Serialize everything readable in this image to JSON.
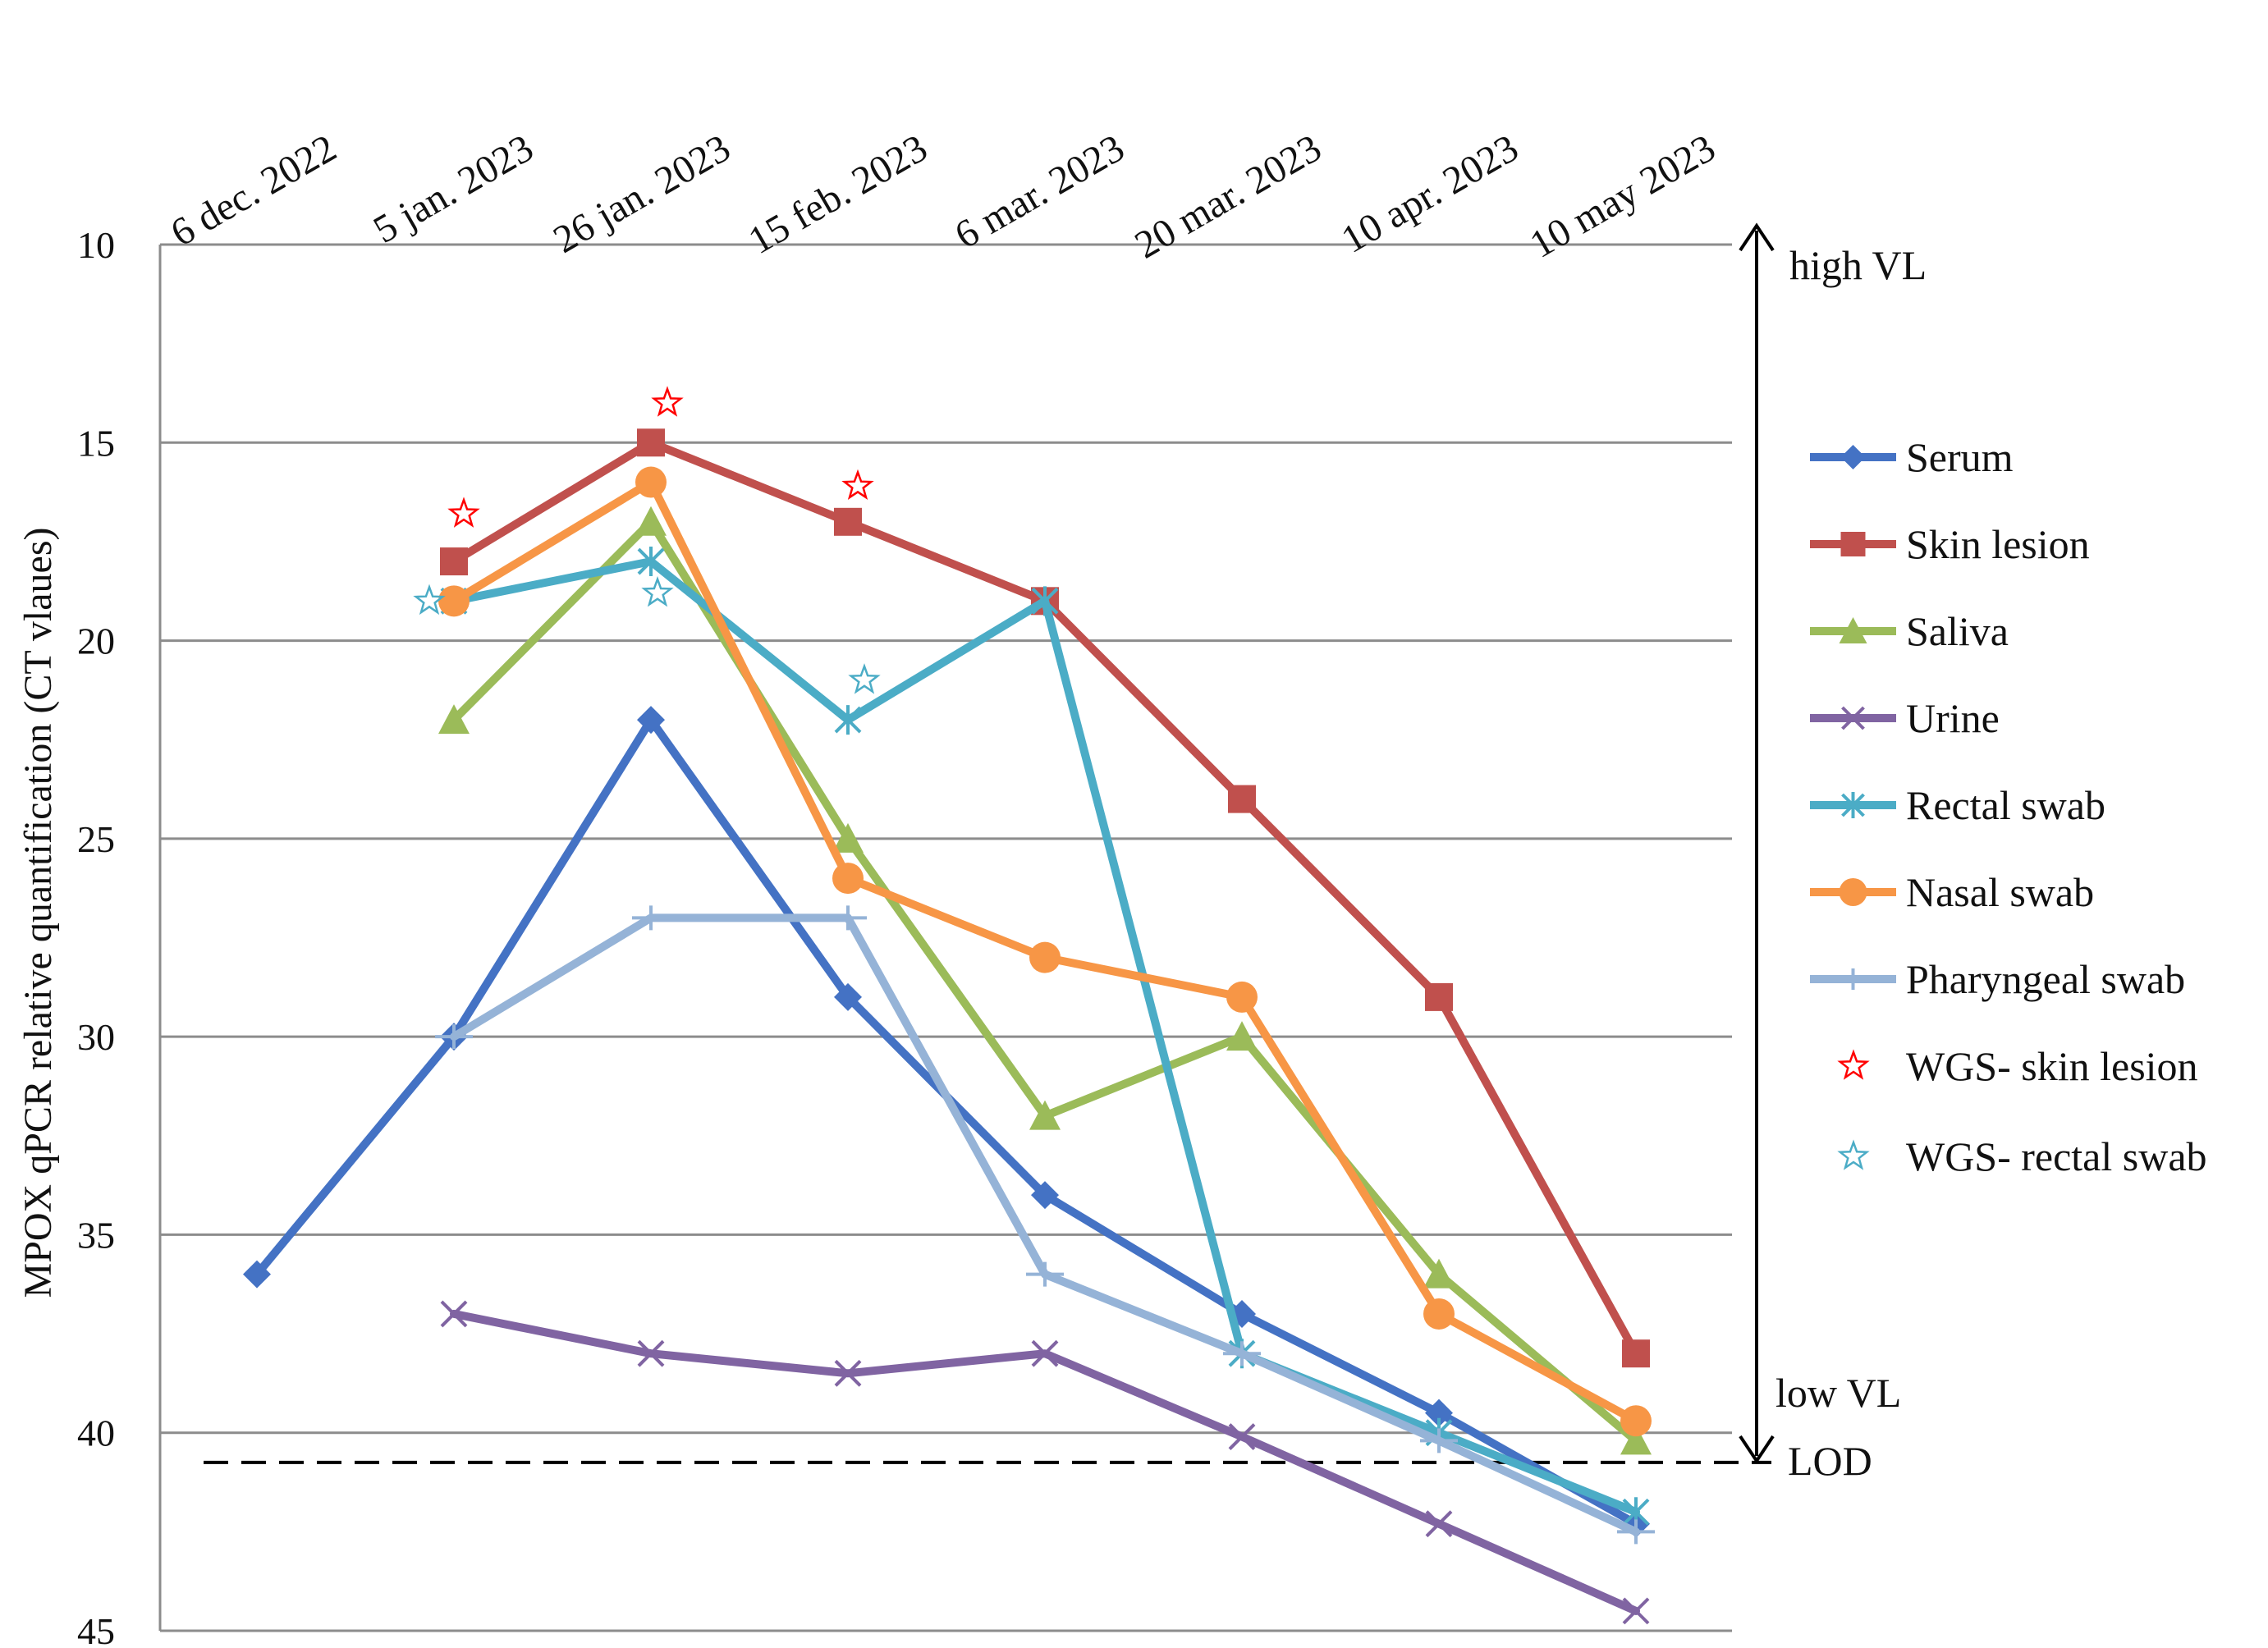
{
  "chart_data": {
    "type": "line",
    "title": "",
    "ylabel": "MPOX  qPCR  relative quantification (CT vlaues)",
    "xlabel": "",
    "ylim": [
      10,
      45
    ],
    "y_inverted": true,
    "yticks": [
      10,
      15,
      20,
      25,
      30,
      35,
      40,
      45
    ],
    "grid": "horizontal",
    "legend_position": "right",
    "categories": [
      "6 dec. 2022",
      "5 jan. 2023",
      "26 jan. 2023",
      "15 feb. 2023",
      "6 mar. 2023",
      "20 mar. 2023",
      "10 apr. 2023",
      "10 may 2023"
    ],
    "series": [
      {
        "name": "Serum",
        "color": "#4472c4",
        "marker": "diamond",
        "values": [
          36,
          30,
          22,
          29,
          34,
          37,
          39.5,
          42.3
        ]
      },
      {
        "name": "Skin lesion",
        "color": "#c0504d",
        "marker": "square",
        "values": [
          null,
          18,
          15,
          17,
          19,
          24,
          29,
          38
        ]
      },
      {
        "name": "Saliva",
        "color": "#9bbb59",
        "marker": "triangle",
        "values": [
          null,
          22,
          17,
          25,
          32,
          30,
          36,
          40.2
        ]
      },
      {
        "name": "Urine",
        "color": "#8064a2",
        "marker": "x",
        "values": [
          null,
          37,
          38,
          38.5,
          38,
          40.1,
          42.3,
          44.5
        ]
      },
      {
        "name": "Rectal swab",
        "color": "#4bacc6",
        "marker": "asterisk",
        "values": [
          null,
          19,
          18,
          22,
          19,
          38,
          40,
          42
        ]
      },
      {
        "name": "Nasal swab",
        "color": "#f79646",
        "marker": "circle",
        "values": [
          null,
          19,
          16,
          26,
          28,
          29,
          37,
          39.7
        ]
      },
      {
        "name": "Pharyngeal swab",
        "color": "#95b3d7",
        "marker": "plus",
        "values": [
          null,
          30,
          27,
          27,
          36,
          38,
          40.2,
          42.5
        ]
      }
    ],
    "wgs_markers": [
      {
        "name": "WGS- skin lesion",
        "color": "#ff0000",
        "marker": "star",
        "points": [
          [
            1,
            16.8
          ],
          [
            2,
            14.0
          ],
          [
            3,
            16.1
          ]
        ]
      },
      {
        "name": "WGS- rectal swab",
        "color": "#4bacc6",
        "marker": "star",
        "points": [
          [
            1,
            19.0
          ],
          [
            2,
            18.8
          ],
          [
            3,
            21.0
          ]
        ]
      }
    ],
    "lod": {
      "label": "LOD",
      "value": 40.75
    },
    "annotations": {
      "high": "high VL",
      "low": "low VL"
    }
  }
}
